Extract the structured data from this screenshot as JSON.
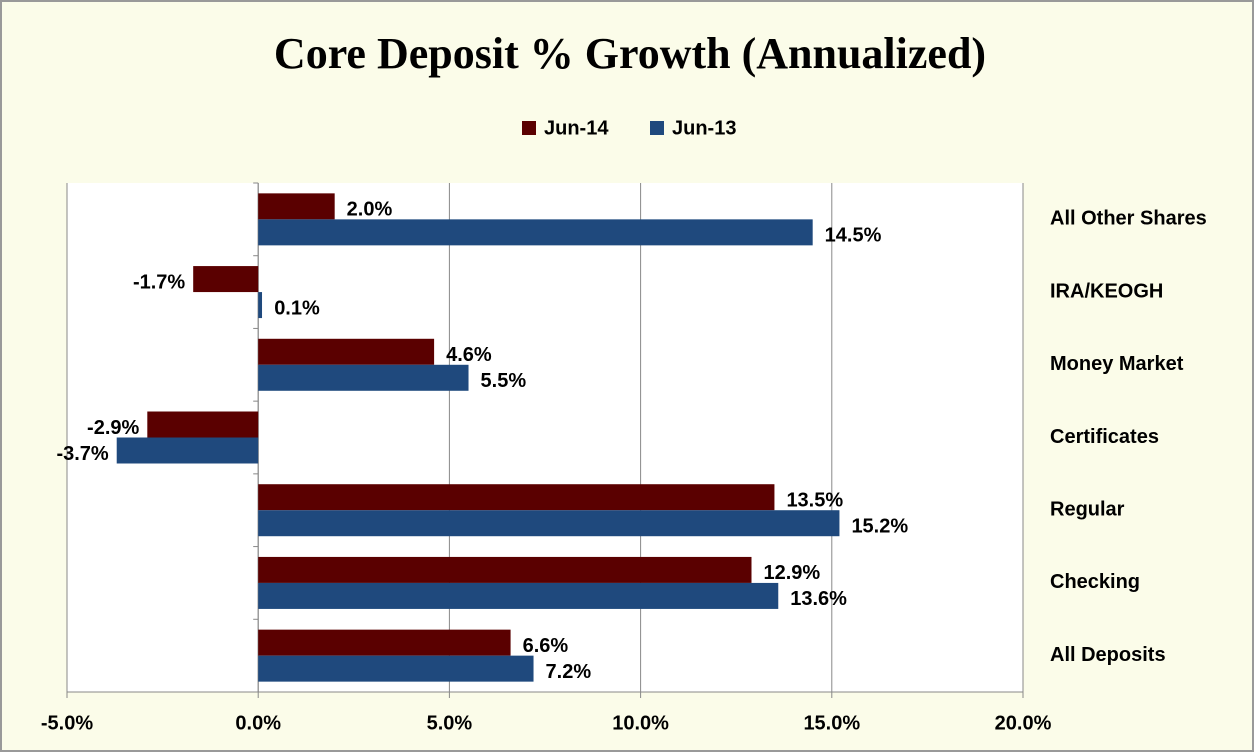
{
  "chart_data": {
    "type": "hbar",
    "title": "Core Deposit % Growth (Annualized)",
    "categories": [
      "All Other Shares",
      "IRA/KEOGH",
      "Money Market",
      "Certificates",
      "Regular",
      "Checking",
      "All Deposits"
    ],
    "series": [
      {
        "name": "Jun-14",
        "color": "#5a0000",
        "values": [
          2.0,
          -1.7,
          4.6,
          -2.9,
          13.5,
          12.9,
          6.6
        ],
        "value_labels": [
          "2.0%",
          "-1.7%",
          "4.6%",
          "-2.9%",
          "13.5%",
          "12.9%",
          "6.6%"
        ]
      },
      {
        "name": "Jun-13",
        "color": "#1f497d",
        "values": [
          14.5,
          0.1,
          5.5,
          -3.7,
          15.2,
          13.6,
          7.2
        ],
        "value_labels": [
          "14.5%",
          "0.1%",
          "5.5%",
          "-3.7%",
          "15.2%",
          "13.6%",
          "7.2%"
        ]
      }
    ],
    "xlim": [
      -5,
      20
    ],
    "xticks": [
      {
        "value": -5,
        "label": "-5.0%"
      },
      {
        "value": 0,
        "label": "0.0%"
      },
      {
        "value": 5,
        "label": "5.0%"
      },
      {
        "value": 10,
        "label": "10.0%"
      },
      {
        "value": 15,
        "label": "15.0%"
      },
      {
        "value": 20,
        "label": "20.0%"
      }
    ],
    "grid": true,
    "legend": "top"
  }
}
